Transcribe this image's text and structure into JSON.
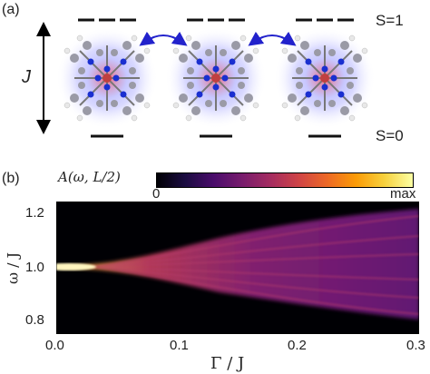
{
  "panel_a": {
    "label": "(a)",
    "axis_label": "J",
    "state_upper": "S=1",
    "state_lower": "S=0"
  },
  "panel_b": {
    "label": "(b)",
    "colorbar": {
      "title": "A(ω, L/2)",
      "min_label": "0",
      "max_label": "max",
      "colors": [
        "#000004",
        "#3b0f70",
        "#8c2981",
        "#de4968",
        "#fe9f6d",
        "#fcfdbf"
      ]
    }
  },
  "chart_data": {
    "type": "heatmap",
    "title": "",
    "xlabel": "Γ / J",
    "ylabel": "ω / J",
    "xlim": [
      0,
      0.3
    ],
    "ylim": [
      0.75,
      1.27
    ],
    "xticks": [
      "0.0",
      "0.1",
      "0.2",
      "0.3"
    ],
    "yticks": [
      "0.8",
      "1.0",
      "1.2"
    ],
    "colorscale": "inferno",
    "description_values": {
      "center_omega": 1.0
    }
  }
}
